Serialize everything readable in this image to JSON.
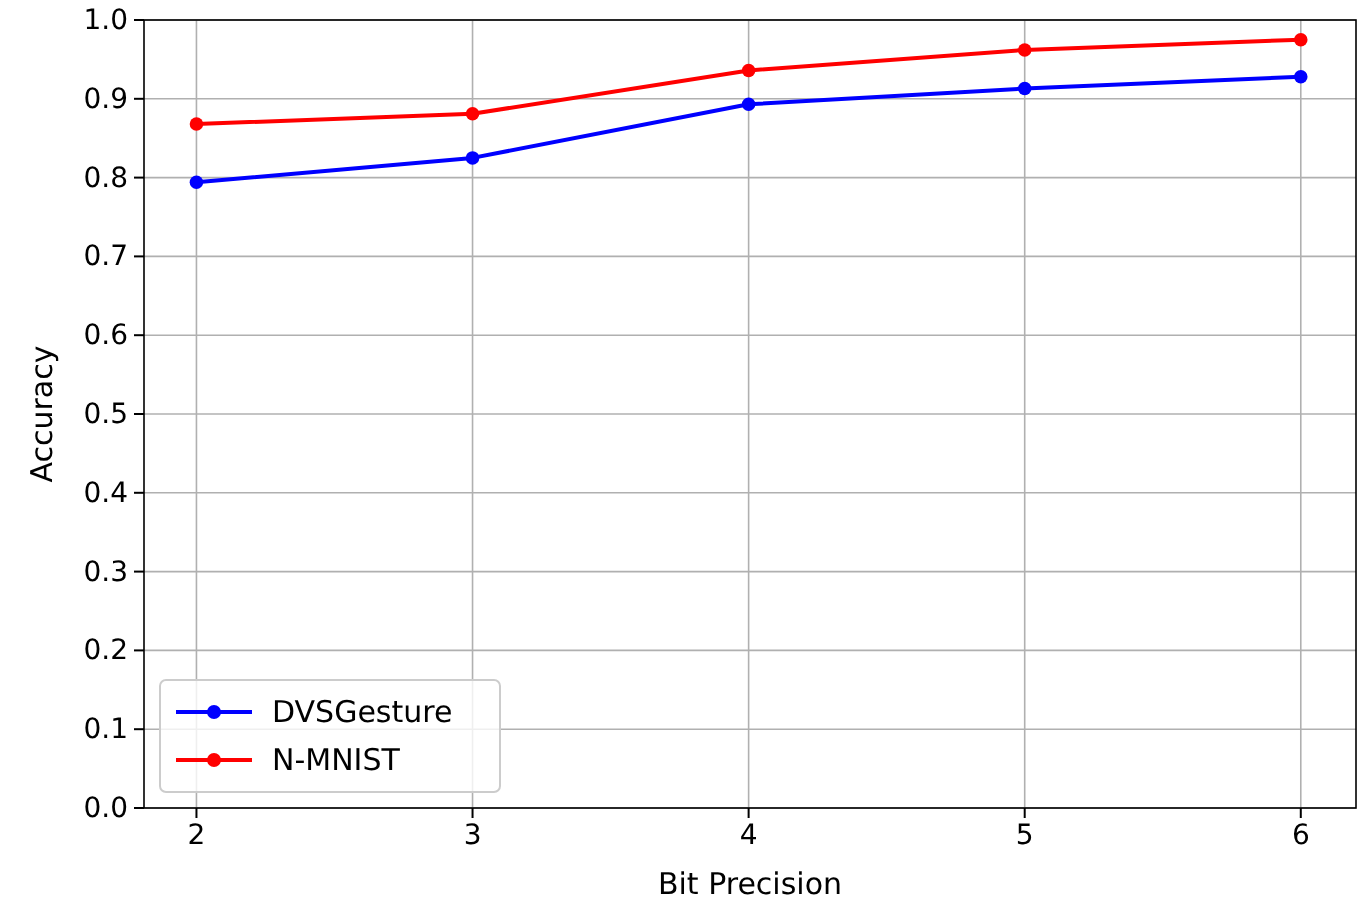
{
  "chart_data": {
    "type": "line",
    "xlabel": "Bit Precision",
    "ylabel": "Accuracy",
    "x": [
      2,
      3,
      4,
      5,
      6
    ],
    "series": [
      {
        "name": "DVSGesture",
        "color": "#0000ff",
        "values": [
          0.794,
          0.825,
          0.893,
          0.913,
          0.928
        ]
      },
      {
        "name": "N-MNIST",
        "color": "#ff0000",
        "values": [
          0.868,
          0.881,
          0.936,
          0.962,
          0.975
        ]
      }
    ],
    "xlim": [
      1.81,
      6.2
    ],
    "ylim": [
      0,
      1
    ],
    "xticks": [
      2,
      3,
      4,
      5,
      6
    ],
    "yticks": [
      {
        "value": 0,
        "label": "0.0"
      },
      {
        "value": 0.1,
        "label": "0.1"
      },
      {
        "value": 0.2,
        "label": "0.2"
      },
      {
        "value": 0.3,
        "label": "0.3"
      },
      {
        "value": 0.4,
        "label": "0.4"
      },
      {
        "value": 0.5,
        "label": "0.5"
      },
      {
        "value": 0.6,
        "label": "0.6"
      },
      {
        "value": 0.7,
        "label": "0.7"
      },
      {
        "value": 0.8,
        "label": "0.8"
      },
      {
        "value": 0.9,
        "label": "0.9"
      },
      {
        "value": 1,
        "label": "1.0"
      }
    ],
    "grid": true,
    "legend": "bottom left",
    "marker": "circle",
    "line_style": "solid"
  }
}
